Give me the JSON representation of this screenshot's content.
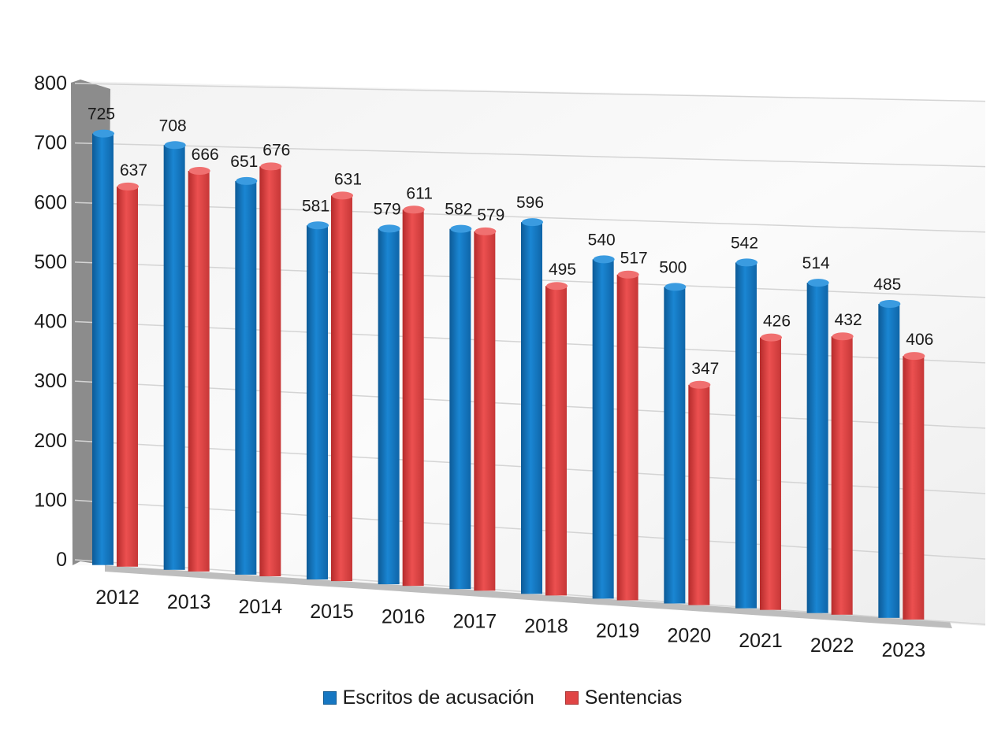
{
  "chart_data": {
    "type": "bar",
    "title": "",
    "xlabel": "",
    "ylabel": "",
    "ylim": [
      0,
      800
    ],
    "yticks": [
      0,
      100,
      200,
      300,
      400,
      500,
      600,
      700,
      800
    ],
    "categories": [
      "2012",
      "2013",
      "2014",
      "2015",
      "2016",
      "2017",
      "2018",
      "2019",
      "2020",
      "2021",
      "2022",
      "2023"
    ],
    "series": [
      {
        "name": "Escritos de acusación",
        "color": "#1677c2",
        "values": [
          725,
          708,
          651,
          581,
          579,
          582,
          596,
          540,
          500,
          542,
          514,
          485
        ]
      },
      {
        "name": "Sentencias",
        "color": "#e04545",
        "values": [
          637,
          666,
          676,
          631,
          611,
          579,
          495,
          517,
          347,
          426,
          432,
          406
        ]
      }
    ],
    "legend_position": "bottom",
    "grid": true
  },
  "legend": {
    "items": [
      {
        "label": "Escritos de acusación",
        "color": "#1677c2"
      },
      {
        "label": "Sentencias",
        "color": "#e04545"
      }
    ]
  }
}
